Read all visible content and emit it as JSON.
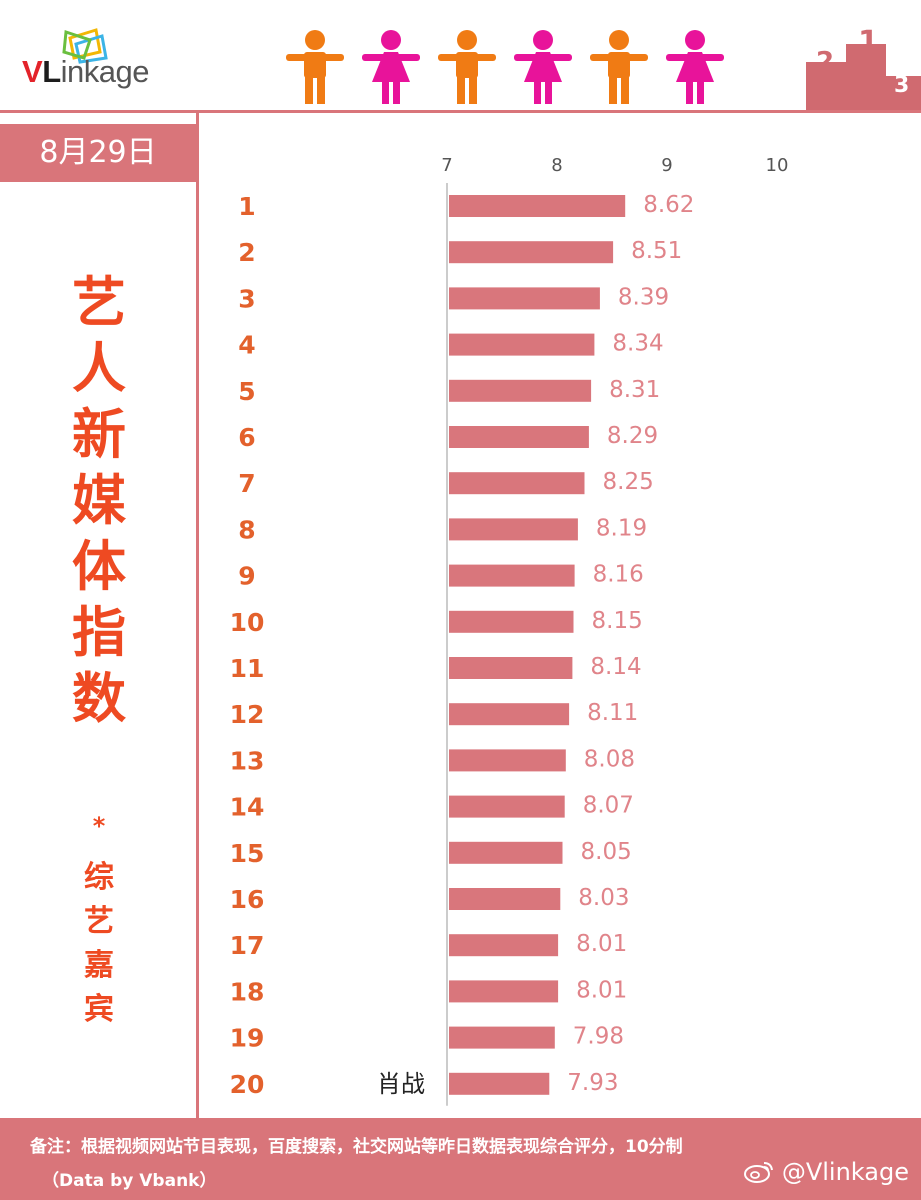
{
  "brand": {
    "logo_v": "V",
    "logo_l": "L",
    "logo_rest": "inkage",
    "accent_color": "#d9757a",
    "title_color": "#ee4a22",
    "figure_colors": [
      "#f07b14",
      "#e8139a"
    ]
  },
  "header": {
    "icons": [
      "person-male-icon",
      "person-female-icon",
      "person-male-icon",
      "person-female-icon",
      "person-male-icon",
      "person-female-icon",
      "podium-icon"
    ]
  },
  "date_label": "8月29日",
  "title": "艺人新媒体指数",
  "title_star": "*",
  "subtitle": "综艺嘉宾",
  "chart_data": {
    "type": "bar",
    "orientation": "horizontal",
    "xlim": [
      7,
      10
    ],
    "x_ticks": [
      "7",
      "8",
      "9",
      "10"
    ],
    "categories": [
      "1",
      "2",
      "3",
      "4",
      "5",
      "6",
      "7",
      "8",
      "9",
      "10",
      "11",
      "12",
      "13",
      "14",
      "15",
      "16",
      "17",
      "18",
      "19",
      "20"
    ],
    "values": [
      8.62,
      8.51,
      8.39,
      8.34,
      8.31,
      8.29,
      8.25,
      8.19,
      8.16,
      8.15,
      8.14,
      8.11,
      8.08,
      8.07,
      8.05,
      8.03,
      8.01,
      8.01,
      7.98,
      7.93
    ],
    "value_labels": [
      "8.62",
      "8.51",
      "8.39",
      "8.34",
      "8.31",
      "8.29",
      "8.25",
      "8.19",
      "8.16",
      "8.15",
      "8.14",
      "8.11",
      "8.08",
      "8.07",
      "8.05",
      "8.03",
      "8.01",
      "8.01",
      "7.98",
      "7.93"
    ],
    "names": [
      "",
      "",
      "",
      "",
      "",
      "",
      "",
      "",
      "",
      "",
      "",
      "",
      "",
      "",
      "",
      "",
      "",
      "",
      "",
      "肖战"
    ],
    "bar_color": "#d9767c",
    "label_color": "#e0848a",
    "rank_color": "#e3612c",
    "grid": false
  },
  "footer": {
    "note": "备注：根据视频网站节目表现，百度搜索，社交网站等昨日数据表现综合评分，10分制",
    "source": "（Data by Vbank）",
    "watermark": "@Vlinkage"
  }
}
